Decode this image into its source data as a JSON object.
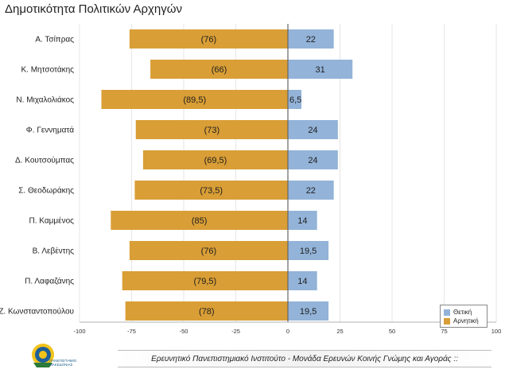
{
  "colors": {
    "positive": "#93b3d8",
    "negative": "#d99e36",
    "axis": "#666666",
    "grid": "#e6e6e6"
  },
  "footer": {
    "text": "Ερευνητικό Πανεπιστημιακό Ινστιτούτο - Μονάδα Ερευνών Κοινής Γνώμης και Αγοράς ::"
  },
  "logo": {
    "icon": "university-seal-icon",
    "text": "ΠΑΝΕΠΙΣΤΗΜΙΟ ΜΑΚΕΔΟΝΙΑΣ"
  },
  "chart_data": {
    "type": "bar",
    "orientation": "horizontal",
    "title": "Δημοτικότητα Πολιτικών Αρχηγών",
    "categories": [
      "Α. Τσίπρας",
      "Κ. Μητσοτάκης",
      "Ν. Μιχαλολιάκος",
      "Φ. Γεννηματά",
      "Δ. Κουτσούμπας",
      "Σ. Θεοδωράκης",
      "Π. Καμμένος",
      "Β. Λεβέντης",
      "Π. Λαφαζάνης",
      "Ζ. Κωνσταντοπούλου"
    ],
    "series": [
      {
        "name": "Θετική",
        "values": [
          22,
          31,
          6.5,
          24,
          24,
          22,
          14,
          19.5,
          14,
          19.5
        ],
        "labels": [
          "22",
          "31",
          "6,5",
          "24",
          "24",
          "22",
          "14",
          "19,5",
          "14",
          "19,5"
        ]
      },
      {
        "name": "Αρνητική",
        "values": [
          -76,
          -66,
          -89.5,
          -73,
          -69.5,
          -73.5,
          -85,
          -76,
          -79.5,
          -78
        ],
        "labels": [
          "(76)",
          "(66)",
          "(89,5)",
          "(73)",
          "(69,5)",
          "(73,5)",
          "(85)",
          "(76)",
          "(79,5)",
          "(78)"
        ]
      }
    ],
    "xlim": [
      -100,
      100
    ],
    "xticks": [
      -100,
      -75,
      -50,
      -25,
      0,
      25,
      50,
      75,
      100
    ],
    "legend": "bottom-right",
    "grid": true
  }
}
